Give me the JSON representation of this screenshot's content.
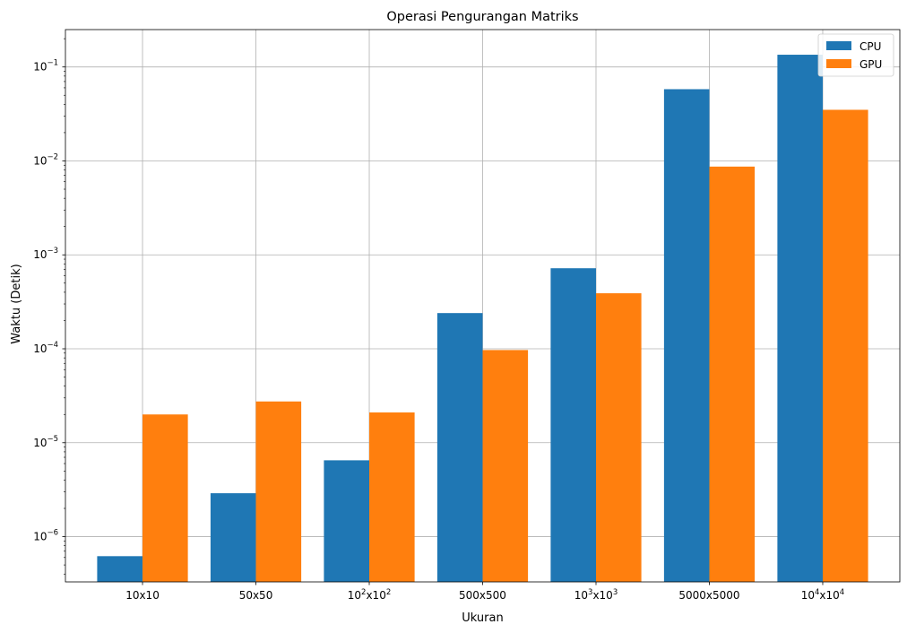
{
  "chart_data": {
    "type": "bar",
    "title": "Operasi Pengurangan Matriks",
    "xlabel": "Ukuran",
    "ylabel": "Waktu (Detik)",
    "yscale": "log",
    "ylim": [
      3.3e-07,
      0.25
    ],
    "grid": true,
    "legend_position": "top-right",
    "categories": [
      {
        "base": "10x10",
        "sup1": "",
        "mid": "",
        "sup2": ""
      },
      {
        "base": "50x50",
        "sup1": "",
        "mid": "",
        "sup2": ""
      },
      {
        "base": "10",
        "sup1": "2",
        "mid": "x10",
        "sup2": "2"
      },
      {
        "base": "500x500",
        "sup1": "",
        "mid": "",
        "sup2": ""
      },
      {
        "base": "10",
        "sup1": "3",
        "mid": "x10",
        "sup2": "3"
      },
      {
        "base": "5000x5000",
        "sup1": "",
        "mid": "",
        "sup2": ""
      },
      {
        "base": "10",
        "sup1": "4",
        "mid": "x10",
        "sup2": "4"
      }
    ],
    "yticks": [
      {
        "base": "10",
        "exp": "−6",
        "value": 1e-06
      },
      {
        "base": "10",
        "exp": "−5",
        "value": 1e-05
      },
      {
        "base": "10",
        "exp": "−4",
        "value": 0.0001
      },
      {
        "base": "10",
        "exp": "−3",
        "value": 0.001
      },
      {
        "base": "10",
        "exp": "−2",
        "value": 0.01
      },
      {
        "base": "10",
        "exp": "−1",
        "value": 0.1
      }
    ],
    "series": [
      {
        "name": "CPU",
        "color": "#1f77b4",
        "values": [
          6.2e-07,
          2.9e-06,
          6.5e-06,
          0.00024,
          0.00072,
          0.058,
          0.135
        ]
      },
      {
        "name": "GPU",
        "color": "#ff7f0e",
        "values": [
          2e-05,
          2.75e-05,
          2.1e-05,
          9.7e-05,
          0.00039,
          0.0087,
          0.035
        ]
      }
    ]
  }
}
